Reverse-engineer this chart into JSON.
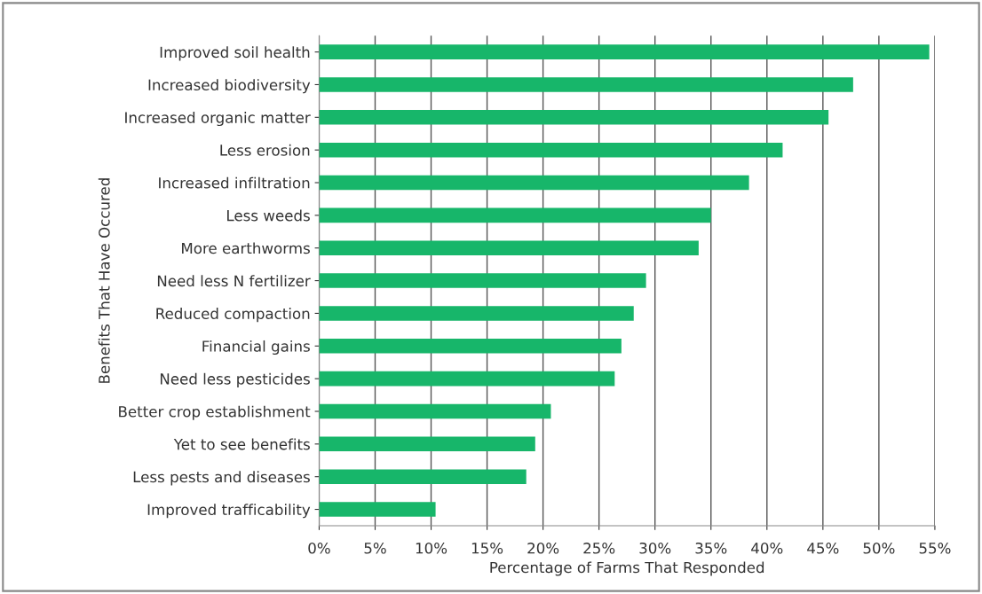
{
  "chart_data": {
    "type": "bar",
    "orientation": "horizontal",
    "categories": [
      "Improved soil health",
      "Increased biodiversity",
      "Increased organic matter",
      "Less erosion",
      "Increased infiltration",
      "Less weeds",
      "More earthworms",
      "Need less N fertilizer",
      "Reduced compaction",
      "Financial gains",
      "Need less pesticides",
      "Better crop establishment",
      "Yet to see benefits",
      "Less pests and diseases",
      "Improved trafficability"
    ],
    "values": [
      54.5,
      47.7,
      45.5,
      41.4,
      38.4,
      35.0,
      33.9,
      29.2,
      28.1,
      27.0,
      26.4,
      20.7,
      19.3,
      18.5,
      10.4
    ],
    "color": "#17b66a",
    "xlabel": "Percentage of Farms That Responded",
    "ylabel": "Benefits That Have Occured",
    "xlim": [
      0,
      55
    ],
    "xticks": [
      {
        "value": 0,
        "label": "0%"
      },
      {
        "value": 5,
        "label": "5%"
      },
      {
        "value": 10,
        "label": "10%"
      },
      {
        "value": 15,
        "label": "15%"
      },
      {
        "value": 20,
        "label": "20%"
      },
      {
        "value": 25,
        "label": "25%"
      },
      {
        "value": 30,
        "label": "30%"
      },
      {
        "value": 35,
        "label": "35%"
      },
      {
        "value": 40,
        "label": "40%"
      },
      {
        "value": 45,
        "label": "45%"
      },
      {
        "value": 50,
        "label": "50%"
      },
      {
        "value": 55,
        "label": "55%"
      }
    ],
    "grid": "x"
  }
}
